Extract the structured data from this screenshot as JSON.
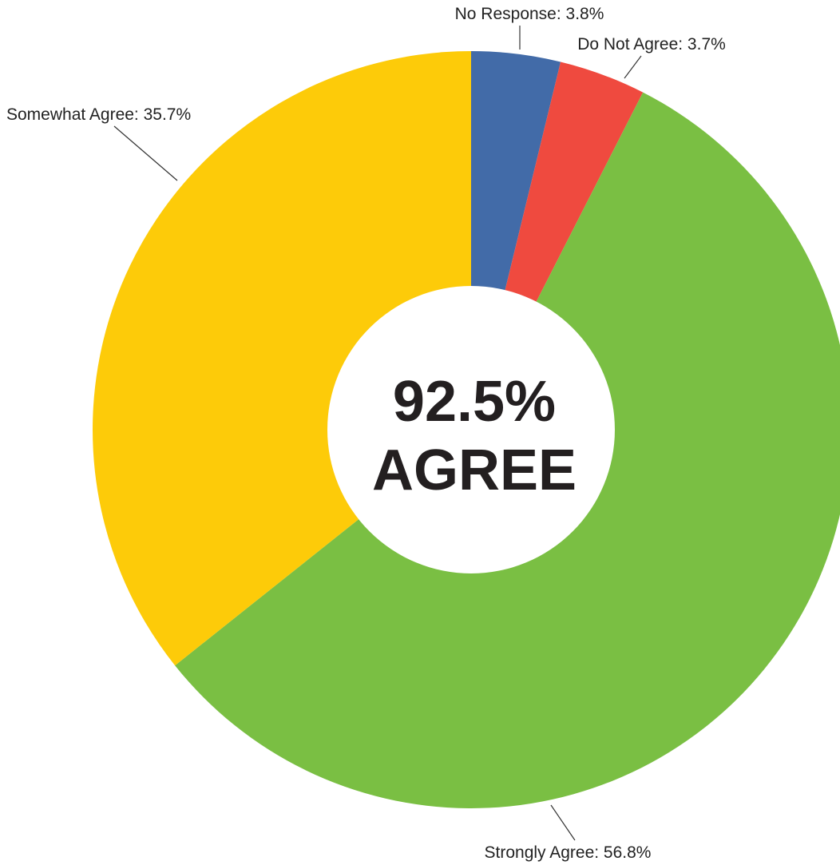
{
  "chart_data": {
    "type": "pie",
    "variant": "donut",
    "start_angle_deg": 0,
    "direction": "clockwise",
    "center_label": {
      "value": "92.5%",
      "text": "AGREE"
    },
    "slices": [
      {
        "name": "No Response",
        "value": 3.8,
        "label": "No Response: 3.8%",
        "color": "#426ba8"
      },
      {
        "name": "Do Not Agree",
        "value": 3.7,
        "label": "Do Not Agree: 3.7%",
        "color": "#ef4a3f"
      },
      {
        "name": "Strongly Agree",
        "value": 56.8,
        "label": "Strongly Agree: 56.8%",
        "color": "#7abf43"
      },
      {
        "name": "Somewhat Agree",
        "value": 35.7,
        "label": "Somewhat Agree: 35.7%",
        "color": "#fdcb09"
      }
    ],
    "legend": "none"
  }
}
